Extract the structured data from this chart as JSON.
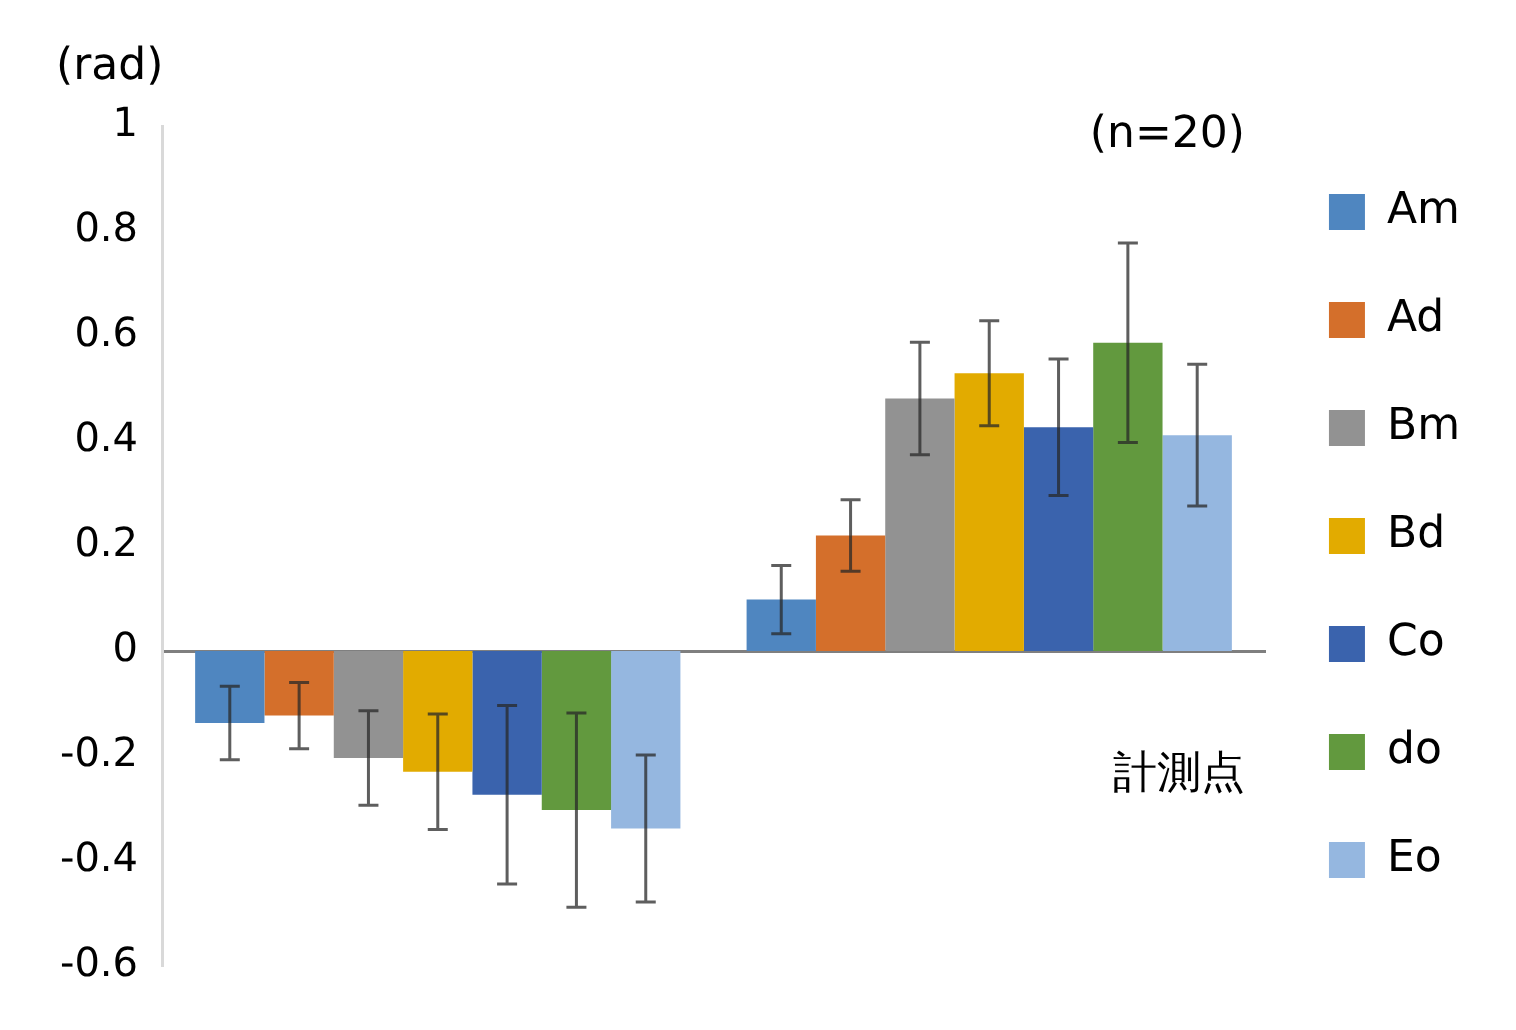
{
  "chart_data": {
    "type": "bar",
    "ylabel": "(rad)",
    "annotations": [
      "(n=20)",
      "計測点"
    ],
    "categories": [
      null,
      null
    ],
    "series": [
      {
        "name": "Am",
        "color": "#4f86c0",
        "values": [
          -0.137,
          0.098
        ],
        "errors": [
          0.07,
          0.065
        ]
      },
      {
        "name": "Ad",
        "color": "#d46f2b",
        "values": [
          -0.123,
          0.22
        ],
        "errors": [
          0.063,
          0.068
        ]
      },
      {
        "name": "Bm",
        "color": "#929292",
        "values": [
          -0.204,
          0.481
        ],
        "errors": [
          0.09,
          0.107
        ]
      },
      {
        "name": "Bd",
        "color": "#e2ab00",
        "values": [
          -0.23,
          0.529
        ],
        "errors": [
          0.11,
          0.1
        ]
      },
      {
        "name": "Co",
        "color": "#3a63ad",
        "values": [
          -0.274,
          0.426
        ],
        "errors": [
          0.17,
          0.13
        ]
      },
      {
        "name": "do",
        "color": "#62993e",
        "values": [
          -0.303,
          0.587
        ],
        "errors": [
          0.185,
          0.19
        ]
      },
      {
        "name": "Eo",
        "color": "#95b7e0",
        "values": [
          -0.338,
          0.411
        ],
        "errors": [
          0.14,
          0.135
        ]
      }
    ],
    "ylim": [
      -0.6,
      1
    ],
    "yticks": [
      -0.6,
      -0.4,
      -0.2,
      0,
      0.2,
      0.4,
      0.6,
      0.8,
      1
    ],
    "legend": "right",
    "tick_labels": "y"
  }
}
